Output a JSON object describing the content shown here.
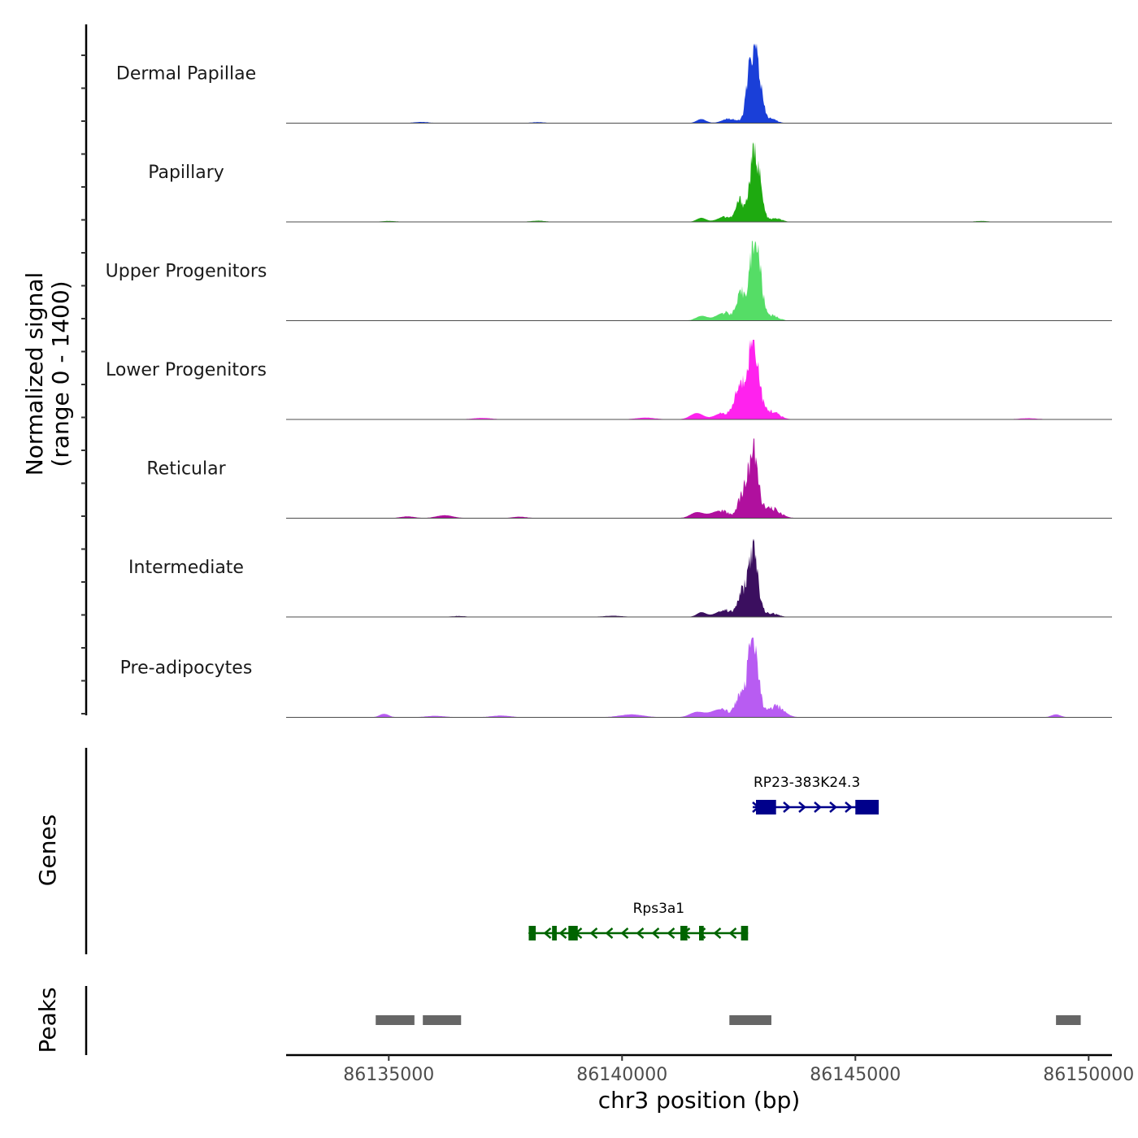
{
  "chart_data": {
    "type": "area",
    "title": "",
    "ylabel_line1": "Normalized signal",
    "ylabel_line2": "(range 0 - 1400)",
    "ylim": [
      0,
      1400
    ],
    "xlabel": "chr3 position (bp)",
    "xlim": [
      86132800,
      86150500
    ],
    "xticks": [
      {
        "value": 86135000,
        "label": "86135000"
      },
      {
        "value": 86140000,
        "label": "86140000"
      },
      {
        "value": 86145000,
        "label": "86145000"
      },
      {
        "value": 86150000,
        "label": "86150000"
      }
    ],
    "series": [
      {
        "name": "Dermal Papillae",
        "color": "#1a3fd8",
        "peaks": [
          [
            86142850,
            1300,
            110
          ],
          [
            86142700,
            300,
            70
          ],
          [
            86142300,
            80,
            150
          ],
          [
            86141700,
            70,
            100
          ],
          [
            86143200,
            70,
            120
          ],
          [
            86135700,
            20,
            150
          ],
          [
            86138200,
            15,
            150
          ]
        ]
      },
      {
        "name": "Papillary",
        "color": "#1eaa10",
        "peaks": [
          [
            86142850,
            1250,
            110
          ],
          [
            86142520,
            360,
            80
          ],
          [
            86142200,
            90,
            150
          ],
          [
            86141700,
            70,
            100
          ],
          [
            86143300,
            60,
            120
          ],
          [
            86138200,
            20,
            150
          ],
          [
            86147700,
            15,
            150
          ],
          [
            86135000,
            15,
            150
          ]
        ]
      },
      {
        "name": "Upper Progenitors",
        "color": "#55dd66",
        "peaks": [
          [
            86142850,
            1500,
            110
          ],
          [
            86142550,
            420,
            90
          ],
          [
            86142200,
            140,
            180
          ],
          [
            86141700,
            80,
            120
          ],
          [
            86143200,
            90,
            140
          ]
        ]
      },
      {
        "name": "Lower Progenitors",
        "color": "#ff22ee",
        "peaks": [
          [
            86142800,
            1450,
            120
          ],
          [
            86142500,
            500,
            100
          ],
          [
            86142150,
            110,
            160
          ],
          [
            86141600,
            110,
            140
          ],
          [
            86143200,
            140,
            160
          ],
          [
            86140500,
            30,
            200
          ],
          [
            86137000,
            25,
            200
          ],
          [
            86148700,
            20,
            200
          ]
        ]
      },
      {
        "name": "Reticular",
        "color": "#b0109e",
        "peaks": [
          [
            86142800,
            1170,
            110
          ],
          [
            86142550,
            330,
            80
          ],
          [
            86142100,
            130,
            200
          ],
          [
            86141600,
            100,
            140
          ],
          [
            86143200,
            170,
            180
          ],
          [
            86136200,
            50,
            180
          ],
          [
            86135400,
            30,
            150
          ],
          [
            86137800,
            25,
            150
          ]
        ]
      },
      {
        "name": "Intermediate",
        "color": "#3b0f5f",
        "peaks": [
          [
            86142800,
            1150,
            110
          ],
          [
            86142550,
            340,
            80
          ],
          [
            86142200,
            120,
            180
          ],
          [
            86141700,
            80,
            100
          ],
          [
            86143200,
            60,
            140
          ],
          [
            86139800,
            20,
            200
          ],
          [
            86136500,
            15,
            150
          ]
        ]
      },
      {
        "name": "Pre-adipocytes",
        "color": "#b85cf2",
        "peaks": [
          [
            86142800,
            1450,
            110
          ],
          [
            86142500,
            340,
            80
          ],
          [
            86142100,
            140,
            200
          ],
          [
            86141600,
            90,
            150
          ],
          [
            86143300,
            190,
            170
          ],
          [
            86134900,
            60,
            100
          ],
          [
            86149300,
            50,
            100
          ],
          [
            86140200,
            50,
            250
          ],
          [
            86137400,
            30,
            200
          ],
          [
            86136000,
            25,
            200
          ]
        ]
      }
    ],
    "genes_label": "Genes",
    "genes": [
      {
        "name": "RP23-383K24.3",
        "strand": "+",
        "color": "#00008b",
        "start": 86142800,
        "end": 86145500,
        "exons": [
          [
            86142870,
            86143300
          ],
          [
            86145000,
            86145500
          ]
        ]
      },
      {
        "name": "Rps3a1",
        "strand": "-",
        "color": "#006400",
        "start": 86138000,
        "end": 86142700,
        "exons": [
          [
            86138000,
            86138150
          ],
          [
            86138500,
            86138600
          ],
          [
            86138850,
            86139050
          ],
          [
            86141250,
            86141400
          ],
          [
            86141650,
            86141750
          ],
          [
            86142550,
            86142700
          ]
        ]
      }
    ],
    "peaks_label": "Peaks",
    "peaks": [
      [
        86134720,
        86135550
      ],
      [
        86135730,
        86136550
      ],
      [
        86142300,
        86143200
      ],
      [
        86149300,
        86149830
      ]
    ]
  }
}
